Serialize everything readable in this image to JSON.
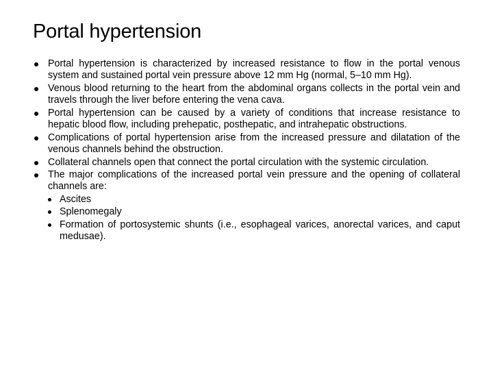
{
  "title": "Portal hypertension",
  "bullets": [
    {
      "text": "Portal hypertension is characterized by increased resistance to flow in the portal venous system and sustained portal vein pressure above 12 mm Hg (normal, 5–10 mm Hg)."
    },
    {
      "text": "Venous blood returning to the heart from the abdominal organs collects in the portal vein and travels through the liver before entering the vena cava."
    },
    {
      "text": "Portal hypertension can be caused by a variety of conditions that increase resistance to hepatic blood flow, including prehepatic, posthepatic, and intrahepatic obstructions."
    },
    {
      "text": "Complications of portal hypertension arise from the increased pressure and dilatation of the venous channels behind the obstruction."
    },
    {
      "text": "Collateral channels open that connect the portal circulation with the systemic circulation."
    },
    {
      "text": "The major complications of the increased portal vein pressure and the opening of collateral channels are:"
    }
  ],
  "subbullets": [
    {
      "text": "Ascites"
    },
    {
      "text": "Splenomegaly"
    },
    {
      "text": "Formation of portosystemic shunts (i.e., esophageal varices, anorectal varices, and caput medusae)."
    }
  ],
  "style": {
    "background_color": "#ffffff",
    "text_color": "#000000",
    "title_fontsize": 29,
    "body_fontsize": 14.3,
    "font_family": "Arial, sans-serif",
    "bullet_color": "#000000",
    "bullet_size": 6,
    "sub_bullet_size": 5
  }
}
